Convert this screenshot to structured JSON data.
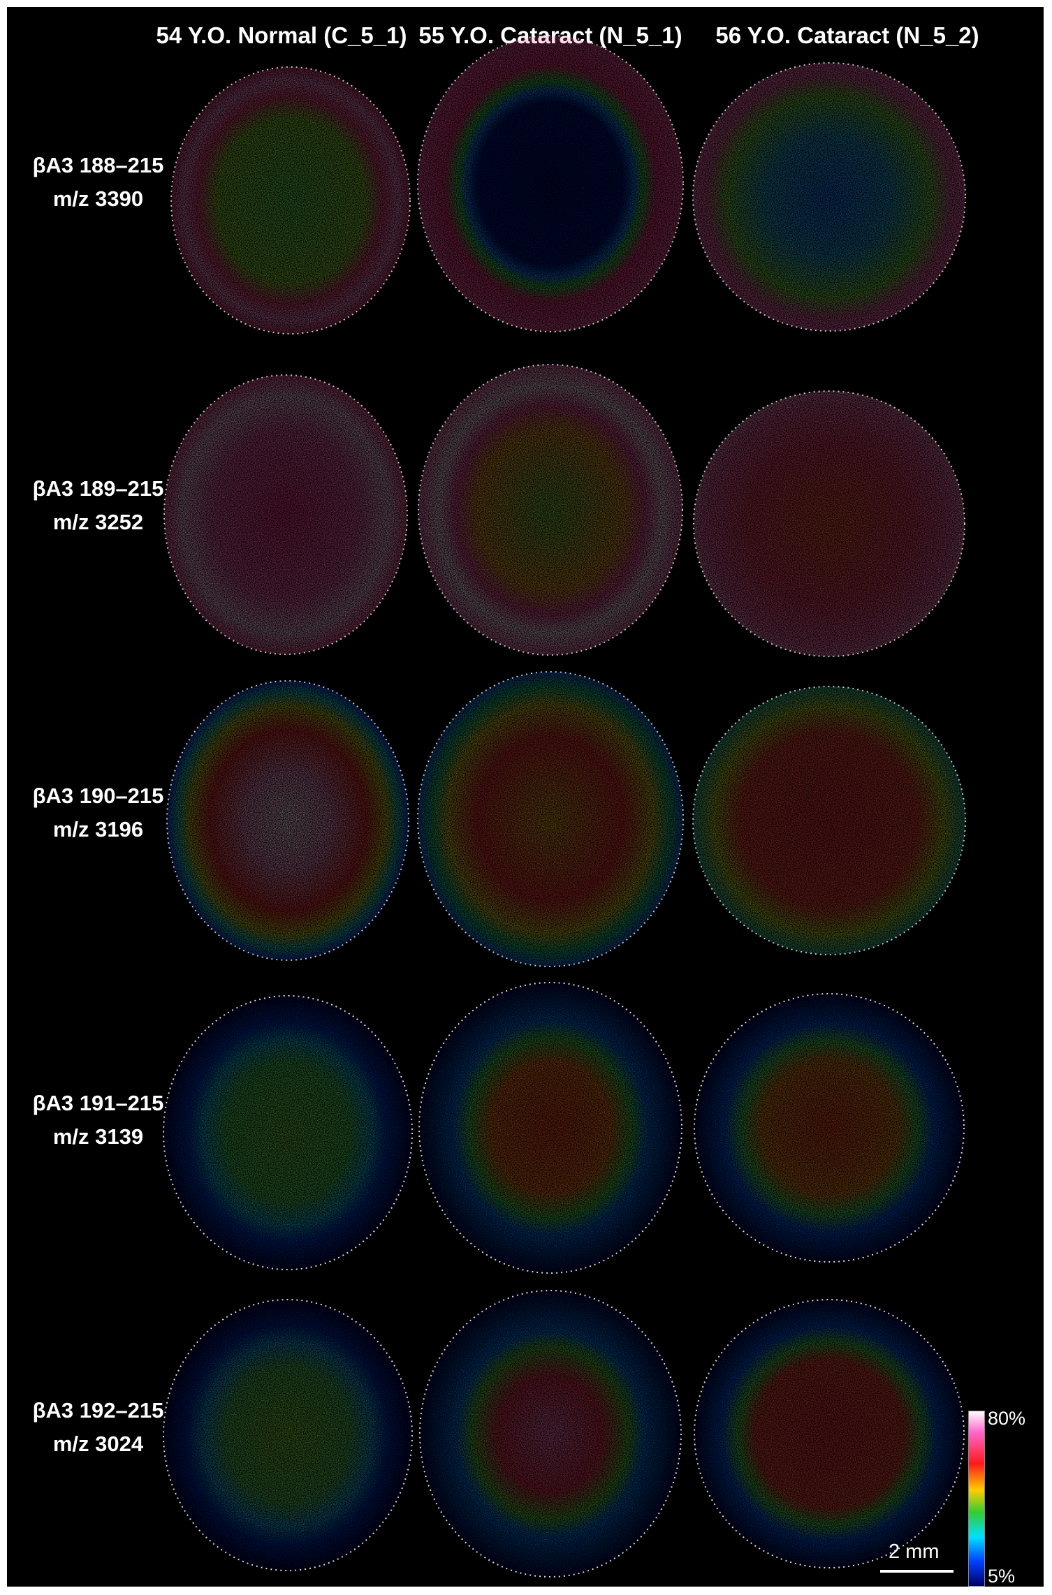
{
  "columns": [
    {
      "header": "54 Y.O. Normal (C_5_1)"
    },
    {
      "header": "55 Y.O. Cataract (N_5_1)"
    },
    {
      "header": "56 Y.O. Cataract (N_5_2)"
    }
  ],
  "rows": [
    {
      "peptide": "βA3 188–215",
      "mz": "m/z 3390"
    },
    {
      "peptide": "βA3 189–215",
      "mz": "m/z 3252"
    },
    {
      "peptide": "βA3 190–215",
      "mz": "m/z 3196"
    },
    {
      "peptide": "βA3 191–215",
      "mz": "m/z 3139"
    },
    {
      "peptide": "βA3 192–215",
      "mz": "m/z 3024"
    }
  ],
  "colorbar": {
    "max_label": "80%",
    "min_label": "5%"
  },
  "scalebar": {
    "label": "2 mm"
  },
  "colors": {
    "background": "#000000",
    "text": "#ffffff",
    "scale": [
      "#ffffff",
      "#ff66cc",
      "#ff1a1a",
      "#ffcc00",
      "#33cc33",
      "#00e0ff",
      "#0040ff",
      "#000066"
    ]
  }
}
